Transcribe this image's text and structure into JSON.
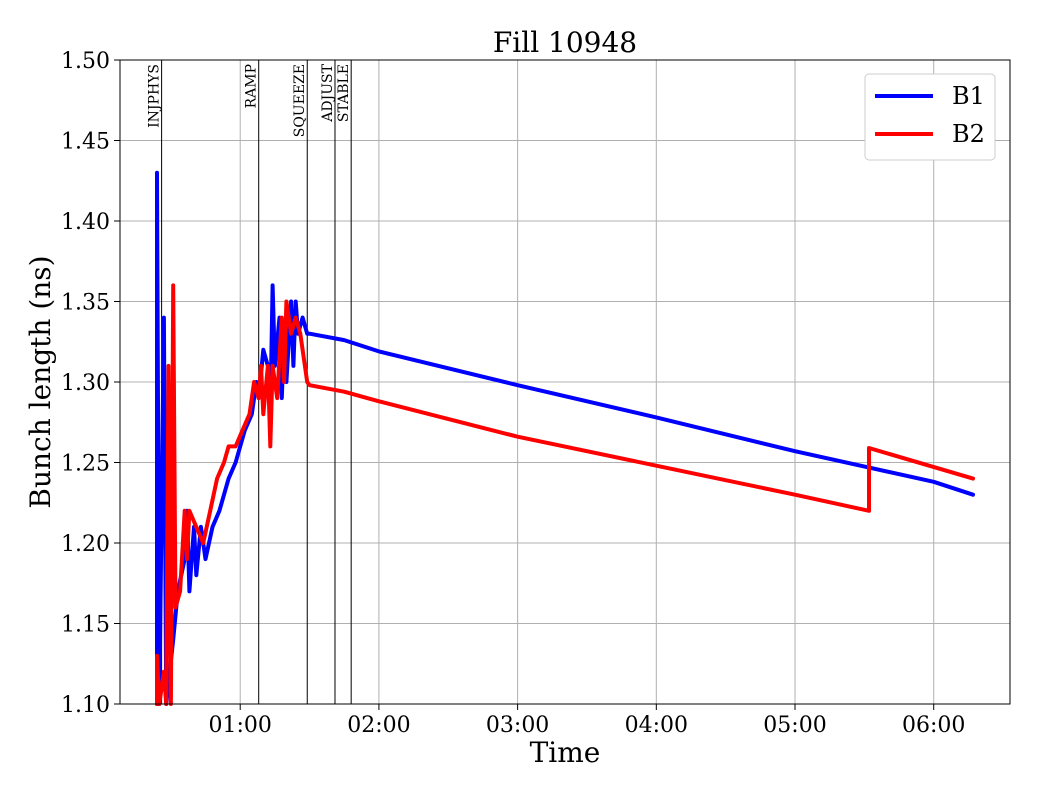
{
  "chart_data": {
    "type": "line",
    "title": "Fill 10948",
    "xlabel": "Time",
    "ylabel": "Bunch length (ns)",
    "xlim": [
      "00:08",
      "06:33"
    ],
    "ylim": [
      1.1,
      1.5
    ],
    "grid": true,
    "legend_position": "top-right",
    "x_ticks": [
      "01:00",
      "02:00",
      "03:00",
      "04:00",
      "05:00",
      "06:00"
    ],
    "y_ticks": [
      "1.10",
      "1.15",
      "1.20",
      "1.25",
      "1.30",
      "1.35",
      "1.40",
      "1.45",
      "1.50"
    ],
    "phases": [
      {
        "label": "INJPHYS",
        "time": "00:26"
      },
      {
        "label": "RAMP",
        "time": "01:08"
      },
      {
        "label": "SQUEEZE",
        "time": "01:29"
      },
      {
        "label": "ADJUST",
        "time": "01:41"
      },
      {
        "label": "STABLE",
        "time": "01:48"
      }
    ],
    "series": [
      {
        "name": "B1",
        "color": "#0000ff",
        "points": [
          [
            "00:24",
            1.1
          ],
          [
            "00:24",
            1.43
          ],
          [
            "00:25",
            1.1
          ],
          [
            "00:27",
            1.34
          ],
          [
            "00:28",
            1.1
          ],
          [
            "00:31",
            1.14
          ],
          [
            "00:33",
            1.17
          ],
          [
            "00:36",
            1.19
          ],
          [
            "00:37",
            1.22
          ],
          [
            "00:38",
            1.17
          ],
          [
            "00:40",
            1.21
          ],
          [
            "00:41",
            1.18
          ],
          [
            "00:43",
            1.21
          ],
          [
            "00:45",
            1.19
          ],
          [
            "00:48",
            1.21
          ],
          [
            "00:51",
            1.22
          ],
          [
            "00:55",
            1.24
          ],
          [
            "00:58",
            1.25
          ],
          [
            "01:02",
            1.27
          ],
          [
            "01:05",
            1.28
          ],
          [
            "01:07",
            1.3
          ],
          [
            "01:08",
            1.29
          ],
          [
            "01:10",
            1.32
          ],
          [
            "01:12",
            1.31
          ],
          [
            "01:13",
            1.28
          ],
          [
            "01:14",
            1.36
          ],
          [
            "01:15",
            1.31
          ],
          [
            "01:17",
            1.34
          ],
          [
            "01:18",
            1.29
          ],
          [
            "01:19",
            1.33
          ],
          [
            "01:20",
            1.3
          ],
          [
            "01:22",
            1.35
          ],
          [
            "01:23",
            1.31
          ],
          [
            "01:24",
            1.35
          ],
          [
            "01:25",
            1.33
          ],
          [
            "01:27",
            1.34
          ],
          [
            "01:29",
            1.33
          ],
          [
            "01:30",
            1.33
          ],
          [
            "01:45",
            1.326
          ],
          [
            "02:00",
            1.319
          ],
          [
            "03:00",
            1.298
          ],
          [
            "04:00",
            1.278
          ],
          [
            "05:00",
            1.257
          ],
          [
            "06:00",
            1.238
          ],
          [
            "06:17",
            1.23
          ]
        ]
      },
      {
        "name": "B2",
        "color": "#ff0000",
        "points": [
          [
            "00:24",
            1.1
          ],
          [
            "00:24",
            1.13
          ],
          [
            "00:25",
            1.1
          ],
          [
            "00:27",
            1.12
          ],
          [
            "00:28",
            1.1
          ],
          [
            "00:29",
            1.31
          ],
          [
            "00:30",
            1.1
          ],
          [
            "00:31",
            1.36
          ],
          [
            "00:32",
            1.16
          ],
          [
            "00:34",
            1.17
          ],
          [
            "00:36",
            1.22
          ],
          [
            "00:37",
            1.19
          ],
          [
            "00:38",
            1.22
          ],
          [
            "00:41",
            1.21
          ],
          [
            "00:44",
            1.2
          ],
          [
            "00:47",
            1.22
          ],
          [
            "00:50",
            1.24
          ],
          [
            "00:53",
            1.25
          ],
          [
            "00:55",
            1.26
          ],
          [
            "00:58",
            1.26
          ],
          [
            "01:01",
            1.27
          ],
          [
            "01:04",
            1.28
          ],
          [
            "01:06",
            1.3
          ],
          [
            "01:08",
            1.29
          ],
          [
            "01:09",
            1.31
          ],
          [
            "01:10",
            1.28
          ],
          [
            "01:12",
            1.31
          ],
          [
            "01:13",
            1.26
          ],
          [
            "01:14",
            1.31
          ],
          [
            "01:16",
            1.29
          ],
          [
            "01:18",
            1.34
          ],
          [
            "01:19",
            1.3
          ],
          [
            "01:20",
            1.35
          ],
          [
            "01:22",
            1.33
          ],
          [
            "01:24",
            1.34
          ],
          [
            "01:26",
            1.33
          ],
          [
            "01:28",
            1.31
          ],
          [
            "01:29",
            1.3
          ],
          [
            "01:30",
            1.298
          ],
          [
            "01:45",
            1.294
          ],
          [
            "02:00",
            1.288
          ],
          [
            "03:00",
            1.266
          ],
          [
            "04:00",
            1.248
          ],
          [
            "05:00",
            1.23
          ],
          [
            "05:32",
            1.22
          ],
          [
            "05:32",
            1.259
          ],
          [
            "06:17",
            1.24
          ]
        ]
      }
    ]
  }
}
